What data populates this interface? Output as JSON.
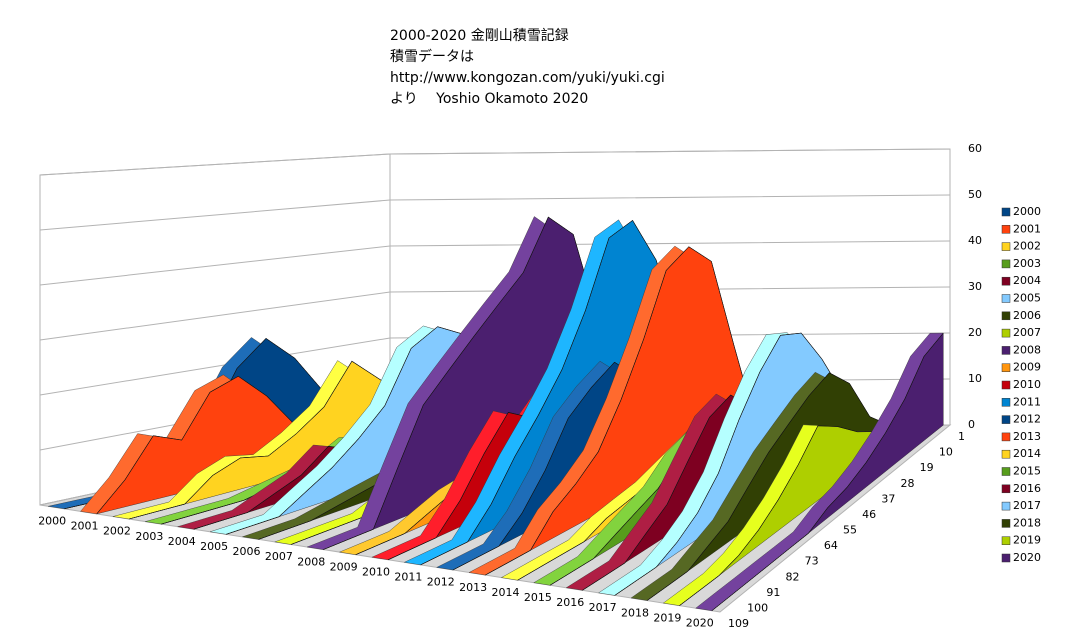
{
  "chart_data": {
    "type": "ribbon3d",
    "title": [
      "2000-2020 金剛山積雪記録",
      "積雪データは",
      "http://www.kongozan.com/yuki/yuki.cgi",
      "より　 Yoshio Okamoto 2020"
    ],
    "categories": [
      1,
      10,
      19,
      28,
      37,
      46,
      55,
      64,
      73,
      82,
      91,
      100,
      109
    ],
    "ylim": [
      0,
      60
    ],
    "yticks": [
      0,
      10,
      20,
      30,
      40,
      50,
      60
    ],
    "grid": true,
    "legend": "right",
    "series": [
      {
        "name": "2000",
        "color": "#004586",
        "values": [
          0,
          0,
          5,
          12,
          20,
          25,
          20,
          10,
          5,
          0,
          0,
          0,
          0
        ]
      },
      {
        "name": "2001",
        "color": "#ff420e",
        "values": [
          0,
          0,
          0,
          2,
          5,
          8,
          15,
          20,
          18,
          10,
          12,
          5,
          0
        ]
      },
      {
        "name": "2002",
        "color": "#ffd320",
        "values": [
          0,
          5,
          10,
          15,
          20,
          12,
          8,
          5,
          6,
          4,
          0,
          0,
          0
        ]
      },
      {
        "name": "2003",
        "color": "#579d1c",
        "values": [
          0,
          0,
          2,
          4,
          5,
          6,
          3,
          2,
          1,
          0,
          0,
          0,
          0
        ]
      },
      {
        "name": "2004",
        "color": "#7e0021",
        "values": [
          0,
          3,
          6,
          8,
          5,
          4,
          6,
          8,
          4,
          2,
          0,
          0,
          0
        ]
      },
      {
        "name": "2005",
        "color": "#83caff",
        "values": [
          0,
          5,
          20,
          25,
          28,
          25,
          15,
          10,
          6,
          3,
          0,
          0,
          0
        ]
      },
      {
        "name": "2006",
        "color": "#314004",
        "values": [
          0,
          2,
          5,
          10,
          8,
          6,
          4,
          3,
          2,
          1,
          0,
          0,
          0
        ]
      },
      {
        "name": "2007",
        "color": "#aecf00",
        "values": [
          0,
          0,
          3,
          5,
          8,
          10,
          6,
          4,
          2,
          0,
          0,
          0,
          0
        ]
      },
      {
        "name": "2008",
        "color": "#4b1f6f",
        "values": [
          0,
          25,
          45,
          50,
          40,
          35,
          30,
          25,
          20,
          10,
          0,
          0,
          0
        ]
      },
      {
        "name": "2009",
        "color": "#ff950e",
        "values": [
          0,
          2,
          5,
          8,
          10,
          8,
          6,
          5,
          4,
          2,
          0,
          0,
          0
        ]
      },
      {
        "name": "2010",
        "color": "#c5000b",
        "values": [
          0,
          5,
          10,
          20,
          25,
          20,
          15,
          18,
          12,
          5,
          0,
          0,
          0
        ]
      },
      {
        "name": "2011",
        "color": "#0084d1",
        "values": [
          0,
          20,
          40,
          50,
          48,
          35,
          25,
          18,
          12,
          5,
          0,
          0,
          0
        ]
      },
      {
        "name": "2012",
        "color": "#004586",
        "values": [
          0,
          2,
          10,
          15,
          20,
          25,
          22,
          18,
          10,
          4,
          0,
          0,
          0
        ]
      },
      {
        "name": "2013",
        "color": "#ff420e",
        "values": [
          0,
          20,
          40,
          45,
          42,
          30,
          20,
          12,
          8,
          5,
          0,
          0,
          0
        ]
      },
      {
        "name": "2014",
        "color": "#ffd320",
        "values": [
          0,
          5,
          8,
          10,
          8,
          6,
          4,
          3,
          2,
          0,
          0,
          0,
          0
        ]
      },
      {
        "name": "2015",
        "color": "#579d1c",
        "values": [
          0,
          3,
          8,
          12,
          15,
          12,
          10,
          6,
          4,
          2,
          0,
          0,
          0
        ]
      },
      {
        "name": "2016",
        "color": "#7e0021",
        "values": [
          0,
          2,
          5,
          10,
          15,
          20,
          18,
          12,
          6,
          3,
          0,
          0,
          0
        ]
      },
      {
        "name": "2017",
        "color": "#83caff",
        "values": [
          0,
          10,
          20,
          28,
          30,
          25,
          18,
          10,
          5,
          2,
          0,
          0,
          0
        ]
      },
      {
        "name": "2018",
        "color": "#314004",
        "values": [
          0,
          5,
          15,
          20,
          18,
          15,
          12,
          8,
          4,
          2,
          0,
          0,
          0
        ]
      },
      {
        "name": "2019",
        "color": "#aecf00",
        "values": [
          0,
          2,
          5,
          8,
          12,
          15,
          10,
          6,
          3,
          1,
          0,
          0,
          0
        ]
      },
      {
        "name": "2020",
        "color": "#4b1f6f",
        "values": [
          20,
          18,
          12,
          8,
          5,
          3,
          2,
          0,
          0,
          0,
          0,
          0,
          0
        ]
      }
    ]
  }
}
